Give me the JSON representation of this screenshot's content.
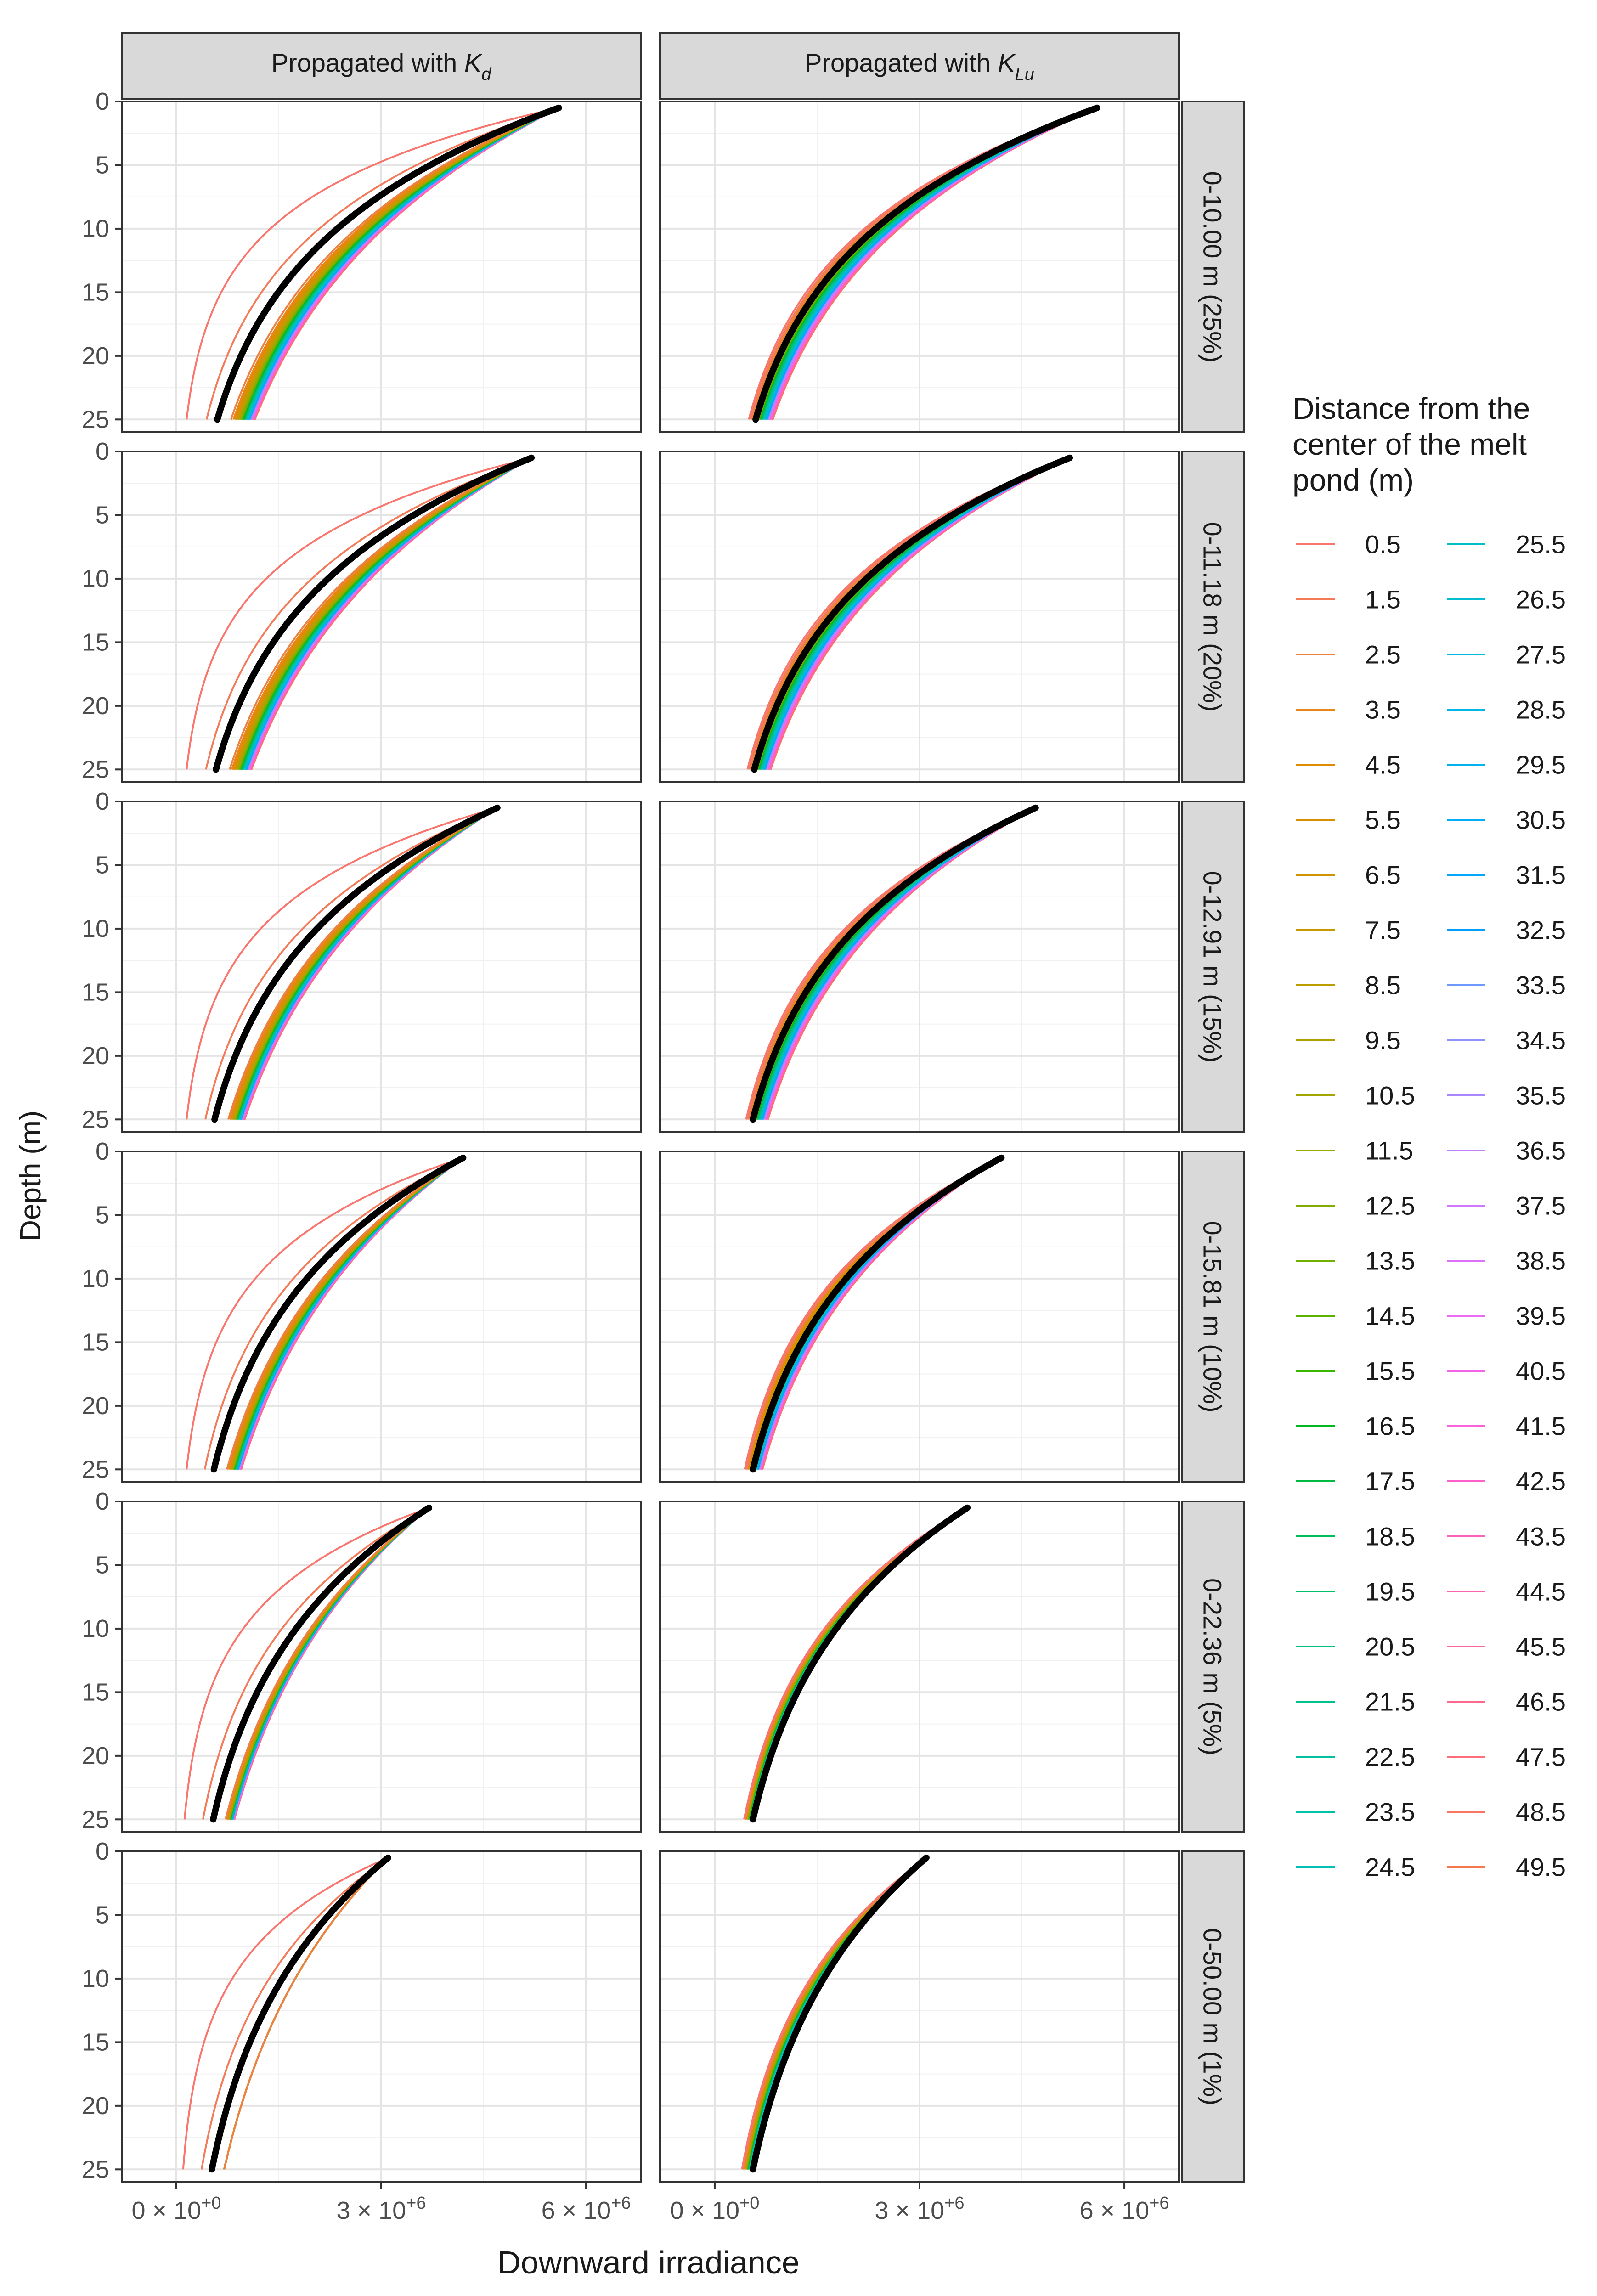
{
  "figure": {
    "col_strips": [
      "Propagated  with  ",
      "Propagated  with  "
    ],
    "col_strip_symbols": [
      {
        "base": "K",
        "sub": "d"
      },
      {
        "base": "K",
        "sub": "Lu"
      }
    ],
    "row_strips": [
      "0-10.00 m (25%)",
      "0-11.18 m (20%)",
      "0-12.91 m (15%)",
      "0-15.81 m (10%)",
      "0-22.36 m (5%)",
      "0-50.00 m (1%)"
    ],
    "ylabel": "Depth (m)",
    "xlabel": "Downward irradiance",
    "legend_title_lines": [
      "Distance from the",
      "center of the melt",
      "pond (m)"
    ]
  },
  "chart_data": {
    "type": "line",
    "facets": "rows = distance range (area fraction); columns = propagation method",
    "x_axis": {
      "label": "Downward irradiance",
      "range": [
        -800000,
        6800000
      ],
      "ticks": [
        0,
        3000000,
        6000000
      ],
      "tick_labels": [
        {
          "m": "0",
          "e": "+0"
        },
        {
          "m": "3",
          "e": "+6"
        },
        {
          "m": "6",
          "e": "+6"
        }
      ]
    },
    "y_axis": {
      "label": "Depth (m)",
      "range": [
        0,
        26
      ],
      "reversed": true,
      "ticks": [
        0,
        5,
        10,
        15,
        20,
        25
      ],
      "tick_labels": [
        "0",
        "5",
        "10",
        "15",
        "20",
        "25"
      ]
    },
    "depth_range": [
      0.5,
      25
    ],
    "legend": {
      "title": "Distance from the center of the melt pond (m)",
      "distances": [
        "0.5",
        "1.5",
        "2.5",
        "3.5",
        "4.5",
        "5.5",
        "6.5",
        "7.5",
        "8.5",
        "9.5",
        "10.5",
        "11.5",
        "12.5",
        "13.5",
        "14.5",
        "15.5",
        "16.5",
        "17.5",
        "18.5",
        "19.5",
        "20.5",
        "21.5",
        "22.5",
        "23.5",
        "24.5",
        "25.5",
        "26.5",
        "27.5",
        "28.5",
        "29.5",
        "30.5",
        "31.5",
        "32.5",
        "33.5",
        "34.5",
        "35.5",
        "36.5",
        "37.5",
        "38.5",
        "39.5",
        "40.5",
        "41.5",
        "42.5",
        "43.5",
        "44.5",
        "45.5",
        "46.5",
        "47.5",
        "48.5",
        "49.5"
      ],
      "colors": [
        "#F8766D",
        "#F37B59",
        "#ED8141",
        "#E7861B",
        "#E08B00",
        "#D89000",
        "#CF9400",
        "#C59900",
        "#BB9D00",
        "#AFA100",
        "#A3A500",
        "#95A900",
        "#85AD00",
        "#72B000",
        "#5BB300",
        "#39B600",
        "#00B81F",
        "#00BA42",
        "#00BC59",
        "#00BE6C",
        "#00BF7D",
        "#00C08D",
        "#00C19C",
        "#00C1AA",
        "#00C0B7",
        "#00BFC4",
        "#00BDD0",
        "#00BADB",
        "#00B6E5",
        "#00B2EE",
        "#00ADF6",
        "#00A7FC",
        "#00A0FF",
        "#6E99FF",
        "#8F91FF",
        "#A988FF",
        "#BE80FF",
        "#CF78FF",
        "#DE71F9",
        "#EA6AF1",
        "#F365E6",
        "#FA62DA",
        "#FF61CC",
        "#FF61BE",
        "#FF62AE",
        "#FF659E",
        "#FF698C",
        "#FD6F7A",
        "#F97563",
        "#F5774E"
      ],
      "mean_color": "#000000"
    },
    "rows": [
      {
        "label": "0-10.00 m (25%)",
        "Kd": {
          "surface": 5600000,
          "mean_bottom": 600000,
          "bottom_min": 150000,
          "bottom_max": 1150000,
          "inner_bottom": 800000
        },
        "KLu": {
          "surface": 5600000,
          "mean_bottom": 600000,
          "bottom_min": 500000,
          "bottom_max": 850000
        }
      },
      {
        "label": "0-11.18 m (20%)",
        "Kd": {
          "surface": 5200000,
          "mean_bottom": 580000,
          "bottom_min": 150000,
          "bottom_max": 1100000,
          "inner_bottom": 780000
        },
        "KLu": {
          "surface": 5200000,
          "mean_bottom": 580000,
          "bottom_min": 480000,
          "bottom_max": 820000
        }
      },
      {
        "label": "0-12.91 m (15%)",
        "Kd": {
          "surface": 4700000,
          "mean_bottom": 560000,
          "bottom_min": 150000,
          "bottom_max": 1000000,
          "inner_bottom": 760000
        },
        "KLu": {
          "surface": 4700000,
          "mean_bottom": 560000,
          "bottom_min": 460000,
          "bottom_max": 780000
        }
      },
      {
        "label": "0-15.81 m (10%)",
        "Kd": {
          "surface": 4200000,
          "mean_bottom": 550000,
          "bottom_min": 150000,
          "bottom_max": 950000,
          "inner_bottom": 740000
        },
        "KLu": {
          "surface": 4200000,
          "mean_bottom": 560000,
          "bottom_min": 440000,
          "bottom_max": 700000
        }
      },
      {
        "label": "0-22.36 m (5%)",
        "Kd": {
          "surface": 3700000,
          "mean_bottom": 540000,
          "bottom_min": 120000,
          "bottom_max": 850000,
          "inner_bottom": 720000
        },
        "KLu": {
          "surface": 3700000,
          "mean_bottom": 560000,
          "bottom_min": 430000,
          "bottom_max": 560000
        }
      },
      {
        "label": "0-50.00 m (1%)",
        "Kd": {
          "surface": 3100000,
          "mean_bottom": 520000,
          "bottom_min": 100000,
          "bottom_max": 700000,
          "inner_bottom": 700000
        },
        "KLu": {
          "surface": 3100000,
          "mean_bottom": 560000,
          "bottom_min": 400000,
          "bottom_max": 560000
        }
      }
    ]
  }
}
